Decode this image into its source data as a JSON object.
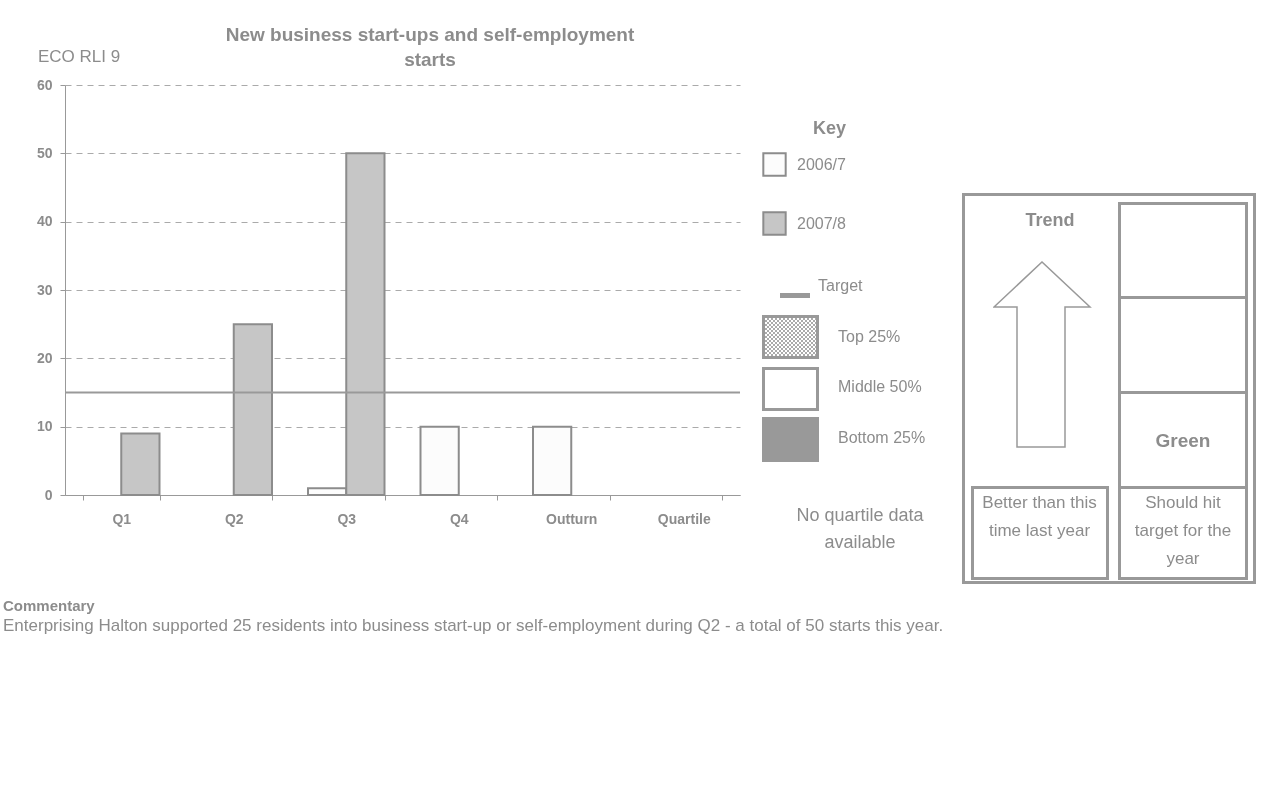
{
  "chart_data": {
    "type": "bar",
    "title": "New business start-ups and self-employment starts",
    "categories": [
      "Q1",
      "Q2",
      "Q3",
      "Q4",
      "Outturn",
      "Quartile"
    ],
    "series": [
      {
        "name": "2006/7",
        "color": "#fcfcfc",
        "values": [
          null,
          null,
          1,
          10,
          10,
          null
        ]
      },
      {
        "name": "2007/8",
        "color": "#c6c6c6",
        "values": [
          9,
          25,
          50,
          null,
          null,
          null
        ]
      }
    ],
    "ylim": [
      0,
      60
    ],
    "yticks": [
      0,
      10,
      20,
      30,
      40,
      50,
      60
    ],
    "grid": "y",
    "ref_lines": [
      {
        "axis": "y",
        "value": 15,
        "label": "Target",
        "color": "#999999"
      }
    ],
    "legend": "right",
    "legend_title": "Key",
    "annotations": [
      "ECO RLI 9",
      "Top 25%",
      "Middle 50%",
      "Bottom 25%",
      "No quartile data available",
      "Trend",
      "Green",
      "Better than this time last year",
      "Should hit target for the year",
      "Commentary",
      "Enterprising Halton supported 25 residents into business start-up or self-employment during Q2 - a total of 50 starts this year."
    ]
  }
}
